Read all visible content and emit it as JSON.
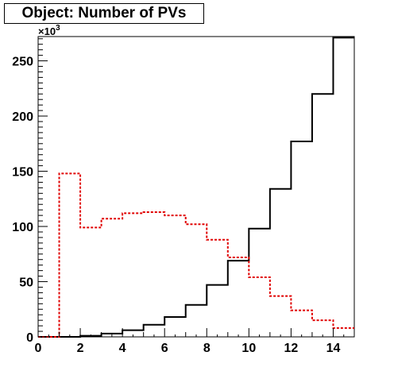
{
  "chart_data": {
    "type": "line",
    "title": "Object: Number of PVs",
    "style": "step-histogram",
    "x_bin_edges": [
      0,
      1,
      2,
      3,
      4,
      5,
      6,
      7,
      8,
      9,
      10,
      11,
      12,
      13,
      14,
      15
    ],
    "xlim": [
      0,
      15
    ],
    "ylim": [
      0,
      272
    ],
    "y_multiplier_label": "×10",
    "y_multiplier_exponent": "3",
    "x_ticks": [
      0,
      2,
      4,
      6,
      8,
      10,
      12,
      14
    ],
    "x_tick_labels": [
      "0",
      "2",
      "4",
      "6",
      "8",
      "10",
      "12",
      "14"
    ],
    "y_ticks": [
      0,
      50,
      100,
      150,
      200,
      250
    ],
    "y_tick_labels": [
      "0",
      "50",
      "100",
      "150",
      "200",
      "250"
    ],
    "grid": false,
    "legend": "none",
    "series": [
      {
        "color": "#000000",
        "dash": "solid",
        "values": [
          0,
          0,
          1,
          3,
          6,
          11,
          18,
          29,
          47,
          69,
          98,
          134,
          177,
          220,
          271
        ]
      },
      {
        "color": "#e00000",
        "dash": "dotted",
        "values": [
          0,
          148,
          99,
          107,
          112,
          113,
          110,
          102,
          88,
          72,
          54,
          37,
          24,
          15,
          8
        ]
      }
    ]
  }
}
